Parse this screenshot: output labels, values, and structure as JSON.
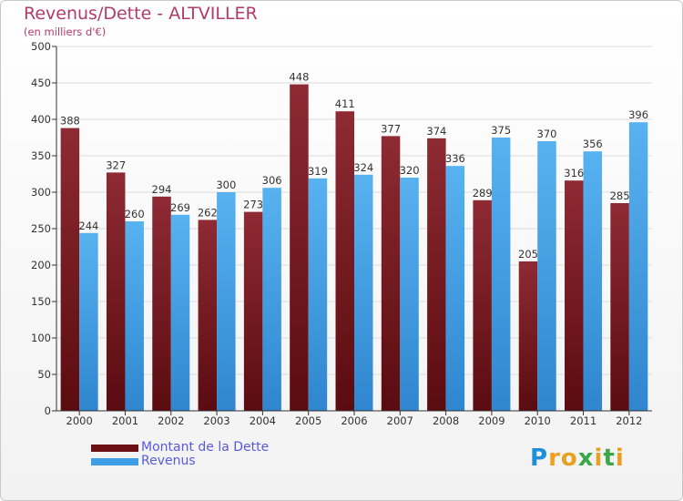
{
  "chart_data": {
    "type": "bar",
    "title": "Revenus/Dette - ALTVILLER",
    "subtitle": "(en milliers d'€)",
    "categories": [
      "2000",
      "2001",
      "2002",
      "2003",
      "2004",
      "2005",
      "2006",
      "2007",
      "2008",
      "2009",
      "2010",
      "2011",
      "2012"
    ],
    "series": [
      {
        "name": "Montant de la Dette",
        "color": "#7a1a1f",
        "values": [
          388,
          327,
          294,
          262,
          273,
          448,
          411,
          377,
          374,
          289,
          205,
          316,
          285
        ]
      },
      {
        "name": "Revenus",
        "color": "#3d9ee6",
        "values": [
          244,
          260,
          269,
          300,
          306,
          319,
          324,
          320,
          336,
          375,
          370,
          356,
          396
        ]
      }
    ],
    "ylim": [
      0,
      500
    ],
    "yticks": [
      0,
      50,
      100,
      150,
      200,
      250,
      300,
      350,
      400,
      450,
      500
    ],
    "grid": true,
    "legend_position": "bottom-left"
  },
  "branding": {
    "logo_text": "Proxiti"
  }
}
